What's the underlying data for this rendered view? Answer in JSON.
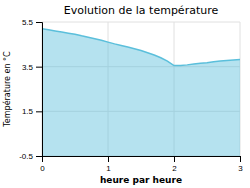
{
  "chart_data": {
    "type": "area",
    "title": "Evolution de la température",
    "xlabel": "heure par heure",
    "ylabel": "Température en °C",
    "x": [
      0,
      0.1,
      0.2,
      0.3,
      0.4,
      0.5,
      0.6,
      0.7,
      0.8,
      0.9,
      1.0,
      1.1,
      1.2,
      1.3,
      1.4,
      1.5,
      1.6,
      1.7,
      1.8,
      1.9,
      2.0,
      2.1,
      2.2,
      2.3,
      2.4,
      2.5,
      2.6,
      2.7,
      2.8,
      2.9,
      3.0
    ],
    "values": [
      5.2,
      5.15,
      5.1,
      5.05,
      5.0,
      4.95,
      4.88,
      4.82,
      4.75,
      4.68,
      4.6,
      4.52,
      4.45,
      4.38,
      4.3,
      4.22,
      4.12,
      4.02,
      3.9,
      3.75,
      3.55,
      3.55,
      3.58,
      3.62,
      3.65,
      3.68,
      3.72,
      3.75,
      3.78,
      3.8,
      3.82
    ],
    "color": "#5bbfdb",
    "xlim": [
      0,
      3
    ],
    "ylim": [
      -0.5,
      5.5
    ],
    "xticks": [
      0,
      1,
      2,
      3
    ],
    "yticks": [
      -0.5,
      1.5,
      3.5,
      5.5
    ],
    "grid": true
  }
}
